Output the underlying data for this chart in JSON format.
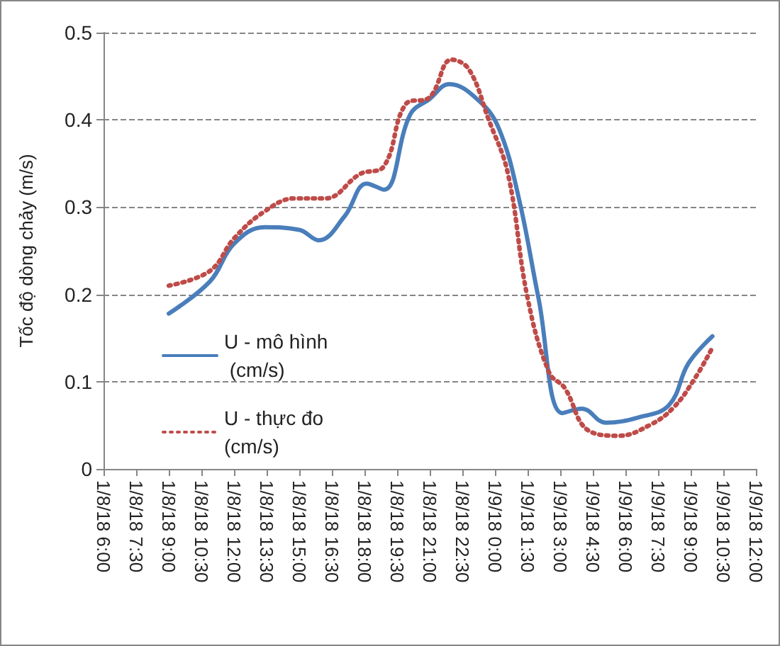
{
  "chart_data": {
    "type": "line",
    "ylabel": "Tốc độ dòng chảy (m/s)",
    "xlim": [
      "--08-01T06:00",
      "--08-02T12:00"
    ],
    "xticks": [
      {
        "value": "--08-01T06:00",
        "label": "1/8/18 6:00"
      },
      {
        "value": "--08-01T07:30",
        "label": "1/8/18 7:30"
      },
      {
        "value": "--08-01T09:00",
        "label": "1/8/18 9:00"
      },
      {
        "value": "--08-01T10:30",
        "label": "1/8/18 10:30"
      },
      {
        "value": "--08-01T12:00",
        "label": "1/8/18 12:00"
      },
      {
        "value": "--08-01T13:30",
        "label": "1/8/18 13:30"
      },
      {
        "value": "--08-01T15:00",
        "label": "1/8/18 15:00"
      },
      {
        "value": "--08-01T16:30",
        "label": "1/8/18 16:30"
      },
      {
        "value": "--08-01T18:00",
        "label": "1/8/18 18:00"
      },
      {
        "value": "--08-01T19:30",
        "label": "1/8/18 19:30"
      },
      {
        "value": "--08-01T21:00",
        "label": "1/8/18 21:00"
      },
      {
        "value": "--08-01T22:30",
        "label": "1/8/18 22:30"
      },
      {
        "value": "--08-02T00:00",
        "label": "1/9/18 0:00"
      },
      {
        "value": "--08-02T01:30",
        "label": "1/9/18 1:30"
      },
      {
        "value": "--08-02T03:00",
        "label": "1/9/18 3:00"
      },
      {
        "value": "--08-02T04:30",
        "label": "1/9/18 4:30"
      },
      {
        "value": "--08-02T06:00",
        "label": "1/9/18 6:00"
      },
      {
        "value": "--08-02T07:30",
        "label": "1/9/18 7:30"
      },
      {
        "value": "--08-02T09:00",
        "label": "1/9/18 9:00"
      },
      {
        "value": "--08-02T10:30",
        "label": "1/9/18 10:30"
      },
      {
        "value": "--08-02T12:00",
        "label": "1/9/18 12:00"
      }
    ],
    "ylim": [
      0,
      0.5
    ],
    "yticks": [
      0,
      0.1,
      0.2,
      0.3,
      0.4,
      0.5
    ],
    "grid": "y",
    "legend": "left",
    "marker": "none",
    "series": [
      {
        "name": "U - mô hình (cm/s)",
        "color": "#4a7ebb",
        "line_style": "solid",
        "x": [
          "--08-01T09:00",
          "--08-01T10:54",
          "--08-01T12:00",
          "--08-01T13:24",
          "--08-01T15:00",
          "--08-01T15:54",
          "--08-01T17:06",
          "--08-01T18:06",
          "--08-01T18:54",
          "--08-01T20:06",
          "--08-01T21:00",
          "--08-01T21:54",
          "--08-01T23:18",
          "--08-02T00:12",
          "--08-02T01:06",
          "--08-02T02:00",
          "--08-02T03:06",
          "--08-02T04:00",
          "--08-02T05:06",
          "--08-02T06:36",
          "--08-02T08:00",
          "--08-02T08:54",
          "--08-02T10:00"
        ],
        "values": [
          0.178,
          0.215,
          0.258,
          0.277,
          0.274,
          0.262,
          0.29,
          0.327,
          0.32,
          0.406,
          0.424,
          0.441,
          0.421,
          0.389,
          0.31,
          0.196,
          0.064,
          0.069,
          0.053,
          0.059,
          0.073,
          0.121,
          0.152
        ]
      },
      {
        "name": "U - thực đo (cm/s)",
        "color": "#be4b48",
        "line_style": "dotted",
        "x": [
          "--08-01T09:00",
          "--08-01T10:54",
          "--08-01T12:00",
          "--08-01T13:24",
          "--08-01T14:48",
          "--08-01T16:12",
          "--08-01T17:48",
          "--08-01T18:54",
          "--08-01T19:54",
          "--08-01T21:00",
          "--08-01T22:00",
          "--08-01T22:48",
          "--08-01T23:42",
          "--08-02T00:36",
          "--08-02T01:30",
          "--08-02T02:30",
          "--08-02T03:12",
          "--08-02T04:18",
          "--08-02T05:42",
          "--08-02T07:06",
          "--08-02T08:12",
          "--08-02T09:12",
          "--08-02T10:00"
        ],
        "values": [
          0.21,
          0.227,
          0.264,
          0.295,
          0.31,
          0.31,
          0.338,
          0.347,
          0.418,
          0.426,
          0.469,
          0.458,
          0.401,
          0.338,
          0.196,
          0.11,
          0.093,
          0.044,
          0.038,
          0.05,
          0.07,
          0.104,
          0.139
        ]
      }
    ]
  }
}
